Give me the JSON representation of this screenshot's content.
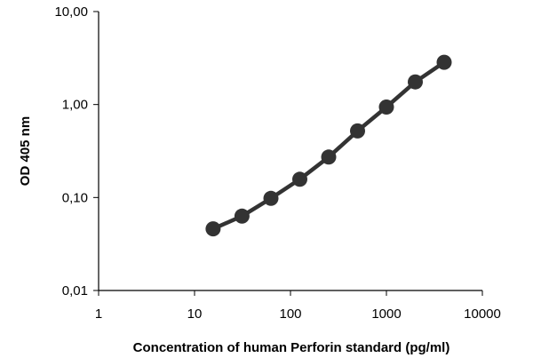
{
  "chart_data": {
    "type": "line",
    "title": "",
    "xlabel": "Concentration of human Perforin standard  (pg/ml)",
    "ylabel": "OD 405 nm",
    "x_scale": "log",
    "y_scale": "log",
    "xlim": [
      1,
      10000
    ],
    "ylim": [
      0.01,
      10
    ],
    "x_ticks": [
      1,
      10,
      100,
      1000,
      10000
    ],
    "x_tick_labels": [
      "1",
      "10",
      "100",
      "1000",
      "10000"
    ],
    "y_ticks": [
      0.01,
      0.1,
      1,
      10
    ],
    "y_tick_labels": [
      "0,01",
      "0,10",
      "1,00",
      "10,00"
    ],
    "grid": false,
    "legend": "none",
    "colors": {
      "series": "#333333",
      "axis": "#000000"
    },
    "series": [
      {
        "x": [
          15.6,
          31.25,
          62.5,
          125,
          250,
          500,
          1000,
          2000,
          4000
        ],
        "y": [
          0.046,
          0.063,
          0.098,
          0.157,
          0.272,
          0.52,
          0.94,
          1.75,
          2.85
        ]
      }
    ]
  }
}
